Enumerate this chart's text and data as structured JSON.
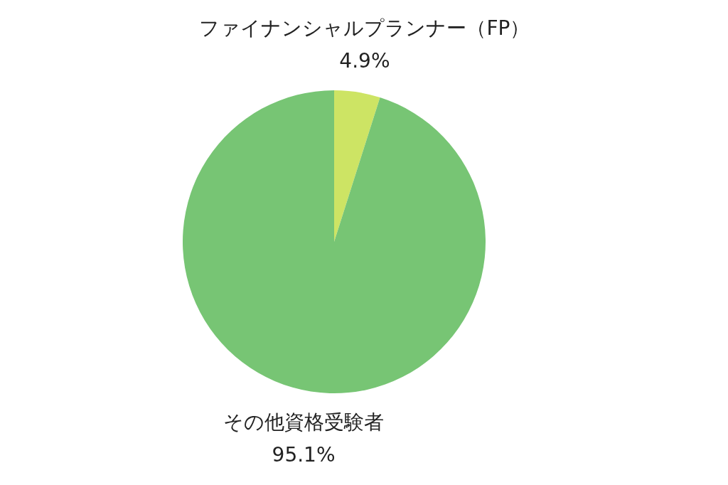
{
  "chart_data": {
    "type": "pie",
    "categories": [
      "ファイナンシャルプランナー（FP）",
      "その他資格受験者"
    ],
    "values": [
      4.9,
      95.1
    ],
    "colors": [
      "#cde464",
      "#77c574"
    ],
    "value_labels": [
      "4.9%",
      "95.1%"
    ]
  }
}
